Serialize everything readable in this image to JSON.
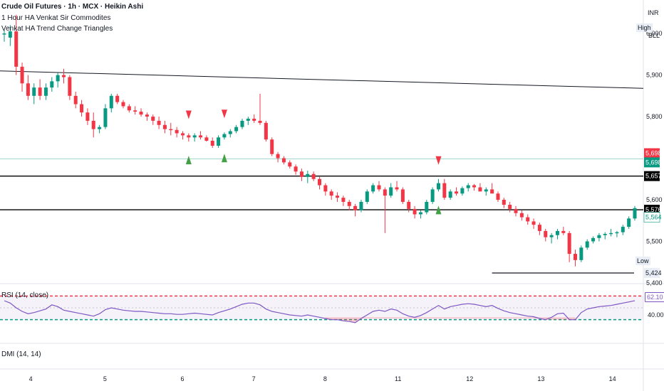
{
  "header": {
    "title": "Crude Oil Futures · 1h · MCX · Heikin Ashi",
    "indicator1": "1 Hour HA Venkat Sir Commodites",
    "indicator2": "Venkat HA Trend Change Triangles",
    "currency": "INR",
    "unit": "BLL"
  },
  "badges": {
    "high": "High",
    "low": "Low"
  },
  "price_axis": {
    "ticks": [
      "6,000",
      "5,900",
      "5,800",
      "5,600",
      "5,500",
      "5,400"
    ],
    "tags": [
      {
        "text": "5,698",
        "bg": "#f23645",
        "fg": "#ffffff"
      },
      {
        "text": "5,698",
        "bg": "#089981",
        "fg": "#ffffff"
      },
      {
        "text": "5,657",
        "bg": "#000000",
        "fg": "#ffffff"
      },
      {
        "text": "5,576",
        "bg": "#000000",
        "fg": "#ffffff"
      },
      {
        "text": "5,564",
        "bg": "#ffffff",
        "fg": "#089981"
      },
      {
        "text": "5,424",
        "bg": "#e9edf6",
        "fg": "#131722"
      }
    ]
  },
  "rsi": {
    "label": "RSI (14, close)",
    "tick": "40.00",
    "value": "62.10"
  },
  "dmi": {
    "label": "DMI (14, 14)"
  },
  "time_axis": {
    "labels": [
      "4",
      "5",
      "6",
      "7",
      "8",
      "11",
      "12",
      "13",
      "14"
    ]
  },
  "colors": {
    "up": "#089981",
    "down": "#f23645",
    "rsi": "#7e57c2",
    "upper_band": "#f23645",
    "lower_band": "#089981"
  },
  "chart_data": {
    "type": "candlestick",
    "ylim": [
      5400,
      6060
    ],
    "horizontal_levels": [
      5657,
      5576
    ],
    "reference_level": 5698,
    "trendline": {
      "start": 5910,
      "end": 5868
    },
    "low_marker": 5424,
    "candles": [
      [
        6000,
        6010,
        5980,
        6000
      ],
      [
        5990,
        6020,
        5970,
        6005
      ],
      [
        6005,
        6045,
        5900,
        5920
      ],
      [
        5920,
        5930,
        5860,
        5880
      ],
      [
        5880,
        5900,
        5840,
        5850
      ],
      [
        5850,
        5880,
        5830,
        5870
      ],
      [
        5870,
        5890,
        5840,
        5850
      ],
      [
        5850,
        5880,
        5840,
        5870
      ],
      [
        5870,
        5895,
        5860,
        5885
      ],
      [
        5885,
        5905,
        5870,
        5900
      ],
      [
        5900,
        5915,
        5880,
        5895
      ],
      [
        5895,
        5900,
        5840,
        5850
      ],
      [
        5850,
        5860,
        5820,
        5830
      ],
      [
        5830,
        5840,
        5800,
        5810
      ],
      [
        5810,
        5820,
        5780,
        5790
      ],
      [
        5790,
        5810,
        5750,
        5770
      ],
      [
        5770,
        5780,
        5760,
        5775
      ],
      [
        5775,
        5830,
        5770,
        5820
      ],
      [
        5820,
        5855,
        5810,
        5850
      ],
      [
        5850,
        5855,
        5830,
        5835
      ],
      [
        5835,
        5840,
        5820,
        5825
      ],
      [
        5825,
        5830,
        5810,
        5815
      ],
      [
        5815,
        5825,
        5805,
        5812
      ],
      [
        5812,
        5820,
        5800,
        5805
      ],
      [
        5805,
        5810,
        5790,
        5800
      ],
      [
        5800,
        5805,
        5780,
        5790
      ],
      [
        5790,
        5800,
        5770,
        5780
      ],
      [
        5780,
        5790,
        5760,
        5770
      ],
      [
        5770,
        5785,
        5755,
        5768
      ],
      [
        5768,
        5775,
        5750,
        5760
      ],
      [
        5760,
        5765,
        5745,
        5755
      ],
      [
        5755,
        5760,
        5740,
        5750
      ],
      [
        5750,
        5760,
        5740,
        5755
      ],
      [
        5755,
        5765,
        5745,
        5750
      ],
      [
        5750,
        5755,
        5740,
        5742
      ],
      [
        5742,
        5750,
        5725,
        5730
      ],
      [
        5730,
        5755,
        5725,
        5750
      ],
      [
        5750,
        5762,
        5745,
        5758
      ],
      [
        5758,
        5770,
        5750,
        5765
      ],
      [
        5765,
        5780,
        5760,
        5775
      ],
      [
        5775,
        5795,
        5770,
        5790
      ],
      [
        5790,
        5800,
        5780,
        5795
      ],
      [
        5795,
        5805,
        5785,
        5790
      ],
      [
        5790,
        5855,
        5780,
        5785
      ],
      [
        5785,
        5790,
        5740,
        5745
      ],
      [
        5745,
        5750,
        5705,
        5710
      ],
      [
        5710,
        5715,
        5690,
        5700
      ],
      [
        5700,
        5705,
        5685,
        5690
      ],
      [
        5690,
        5695,
        5675,
        5680
      ],
      [
        5680,
        5685,
        5660,
        5668
      ],
      [
        5668,
        5675,
        5645,
        5655
      ],
      [
        5655,
        5670,
        5640,
        5662
      ],
      [
        5662,
        5668,
        5645,
        5650
      ],
      [
        5650,
        5655,
        5625,
        5635
      ],
      [
        5635,
        5640,
        5610,
        5620
      ],
      [
        5620,
        5625,
        5600,
        5610
      ],
      [
        5610,
        5618,
        5595,
        5605
      ],
      [
        5605,
        5610,
        5585,
        5595
      ],
      [
        5595,
        5600,
        5575,
        5585
      ],
      [
        5585,
        5590,
        5560,
        5575
      ],
      [
        5575,
        5600,
        5570,
        5595
      ],
      [
        5595,
        5625,
        5590,
        5620
      ],
      [
        5620,
        5640,
        5615,
        5635
      ],
      [
        5635,
        5645,
        5620,
        5625
      ],
      [
        5625,
        5630,
        5520,
        5610
      ],
      [
        5610,
        5640,
        5605,
        5630
      ],
      [
        5630,
        5645,
        5620,
        5625
      ],
      [
        5625,
        5630,
        5590,
        5595
      ],
      [
        5595,
        5600,
        5570,
        5578
      ],
      [
        5578,
        5585,
        5555,
        5565
      ],
      [
        5565,
        5575,
        5555,
        5570
      ],
      [
        5570,
        5600,
        5565,
        5595
      ],
      [
        5595,
        5630,
        5590,
        5625
      ],
      [
        5625,
        5650,
        5620,
        5640
      ],
      [
        5640,
        5650,
        5600,
        5605
      ],
      [
        5605,
        5625,
        5600,
        5620
      ],
      [
        5620,
        5630,
        5610,
        5615
      ],
      [
        5615,
        5632,
        5610,
        5628
      ],
      [
        5628,
        5640,
        5620,
        5635
      ],
      [
        5635,
        5638,
        5622,
        5630
      ],
      [
        5630,
        5640,
        5625,
        5620
      ],
      [
        5620,
        5630,
        5610,
        5625
      ],
      [
        5625,
        5640,
        5618,
        5615
      ],
      [
        5615,
        5620,
        5595,
        5600
      ],
      [
        5600,
        5605,
        5580,
        5588
      ],
      [
        5588,
        5595,
        5570,
        5578
      ],
      [
        5578,
        5585,
        5560,
        5568
      ],
      [
        5568,
        5575,
        5550,
        5558
      ],
      [
        5558,
        5565,
        5540,
        5548
      ],
      [
        5548,
        5555,
        5530,
        5540
      ],
      [
        5540,
        5545,
        5515,
        5525
      ],
      [
        5525,
        5530,
        5500,
        5510
      ],
      [
        5510,
        5520,
        5495,
        5515
      ],
      [
        5515,
        5530,
        5505,
        5525
      ],
      [
        5525,
        5535,
        5515,
        5520
      ],
      [
        5520,
        5525,
        5450,
        5470
      ],
      [
        5470,
        5480,
        5440,
        5455
      ],
      [
        5455,
        5490,
        5450,
        5485
      ],
      [
        5485,
        5505,
        5480,
        5500
      ],
      [
        5500,
        5512,
        5495,
        5508
      ],
      [
        5508,
        5520,
        5500,
        5515
      ],
      [
        5515,
        5522,
        5505,
        5518
      ],
      [
        5518,
        5530,
        5512,
        5520
      ],
      [
        5520,
        5525,
        5510,
        5522
      ],
      [
        5522,
        5540,
        5515,
        5535
      ],
      [
        5535,
        5560,
        5530,
        5555
      ],
      [
        5555,
        5585,
        5550,
        5580
      ]
    ],
    "rsi_series": [
      62,
      58,
      50,
      44,
      40,
      42,
      45,
      48,
      55,
      52,
      46,
      44,
      42,
      40,
      38,
      36,
      40,
      47,
      50,
      48,
      46,
      45,
      44,
      44,
      43,
      42,
      41,
      40,
      40,
      39,
      39,
      40,
      41,
      40,
      39,
      38,
      42,
      45,
      48,
      52,
      56,
      58,
      58,
      55,
      48,
      44,
      42,
      40,
      38,
      37,
      36,
      38,
      36,
      34,
      32,
      30,
      30,
      28,
      27,
      25,
      32,
      38,
      44,
      46,
      44,
      48,
      46,
      40,
      36,
      34,
      37,
      42,
      48,
      54,
      48,
      52,
      54,
      56,
      57,
      56,
      54,
      52,
      54,
      49,
      45,
      42,
      40,
      38,
      36,
      35,
      32,
      30,
      34,
      40,
      41,
      30,
      30,
      42,
      48,
      50,
      52,
      53,
      54,
      56,
      58,
      60,
      62
    ],
    "rsi_range": [
      20,
      80
    ],
    "rsi_bands": [
      70,
      30
    ],
    "up_triangles": [
      31,
      37,
      73
    ],
    "down_triangles": [
      31,
      37,
      73
    ],
    "x_label_positions": [
      4.5,
      17,
      30,
      42,
      54,
      66,
      78,
      90,
      102
    ]
  }
}
